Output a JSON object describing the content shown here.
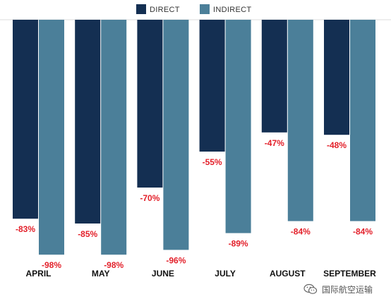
{
  "chart_data": {
    "type": "bar",
    "categories": [
      "APRIL",
      "MAY",
      "JUNE",
      "JULY",
      "AUGUST",
      "SEPTEMBER"
    ],
    "series": [
      {
        "name": "DIRECT",
        "values": [
          -83,
          -85,
          -70,
          -55,
          -47,
          -48
        ],
        "labels": [
          "-83%",
          "-85%",
          "-70%",
          "-55%",
          "-47%",
          "-48%"
        ]
      },
      {
        "name": "INDIRECT",
        "values": [
          -98,
          -98,
          -96,
          -89,
          -84,
          -84
        ],
        "labels": [
          "-98%",
          "-98%",
          "-96%",
          "-89%",
          "-84%",
          "-84%"
        ]
      }
    ],
    "ylim": [
      -100,
      0
    ],
    "legend_position": "top-center",
    "grid": false,
    "label_color": "#e3202a"
  },
  "colors": {
    "direct": "#142f52",
    "indirect": "#4b7f99",
    "baseline": "#dddddd"
  },
  "watermark": {
    "text": "国际航空运输",
    "icon": "wechat-icon"
  }
}
